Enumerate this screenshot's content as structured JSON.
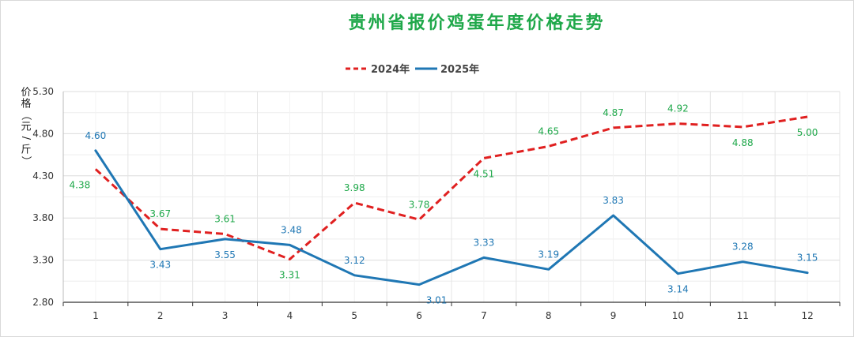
{
  "chart_data": {
    "type": "line",
    "title": "贵州省报价鸡蛋年度价格走势",
    "ylabel": "价格（元/斤）",
    "xlabel": "",
    "x": [
      "1",
      "2",
      "3",
      "4",
      "5",
      "6",
      "7",
      "8",
      "9",
      "10",
      "11",
      "12"
    ],
    "ylim": [
      2.8,
      5.3
    ],
    "yticks": [
      "2.80",
      "3.30",
      "3.80",
      "4.30",
      "4.80",
      "5.30"
    ],
    "grid": true,
    "legend": "top-center",
    "series": [
      {
        "name": "2024年",
        "style": "dashed",
        "color": "#e02020",
        "label_color": "#1fa84a",
        "values": [
          4.38,
          3.67,
          3.61,
          3.31,
          3.98,
          3.78,
          4.51,
          4.65,
          4.87,
          4.92,
          4.88,
          5.0
        ],
        "labels": [
          "4.38",
          "3.67",
          "3.61",
          "3.31",
          "3.98",
          "3.78",
          "4.51",
          "4.65",
          "4.87",
          "4.92",
          "4.88",
          "5.00"
        ]
      },
      {
        "name": "2025年",
        "style": "solid",
        "color": "#1f77b4",
        "label_color": "#1f77b4",
        "values": [
          4.6,
          3.43,
          3.55,
          3.48,
          3.12,
          3.01,
          3.33,
          3.19,
          3.83,
          3.14,
          3.28,
          3.15
        ],
        "labels": [
          "4.60",
          "3.43",
          "3.55",
          "3.48",
          "3.12",
          "3.01",
          "3.33",
          "3.19",
          "3.83",
          "3.14",
          "3.28",
          "3.15"
        ]
      }
    ]
  }
}
